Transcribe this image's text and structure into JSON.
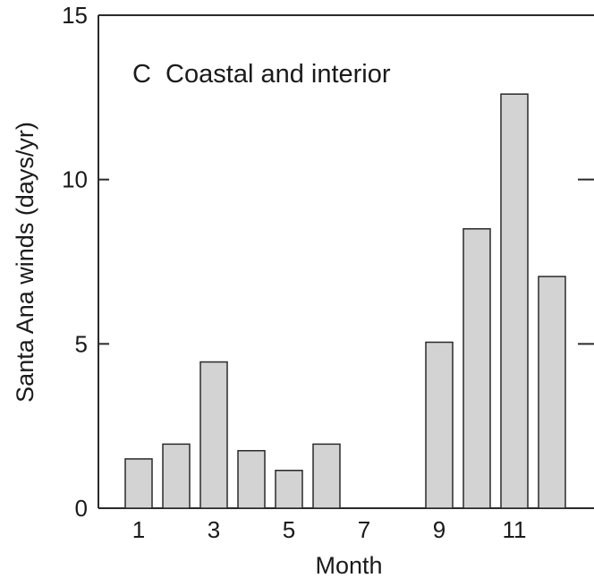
{
  "chart_data": {
    "type": "bar",
    "panel_label": "C  Coastal and interior",
    "xlabel": "Month",
    "ylabel": "Santa Ana winds (days/yr)",
    "categories": [
      1,
      2,
      3,
      4,
      5,
      6,
      7,
      8,
      9,
      10,
      11,
      12
    ],
    "x_tick_labels": [
      "1",
      "3",
      "5",
      "7",
      "9",
      "11"
    ],
    "values": [
      1.5,
      1.95,
      4.45,
      1.75,
      1.15,
      1.95,
      0,
      0,
      5.05,
      8.5,
      12.6,
      7.05
    ],
    "ylim": [
      0,
      15
    ],
    "y_ticks": [
      0,
      5,
      10,
      15
    ],
    "y_tick_labels": [
      "0",
      "5",
      "10",
      "15"
    ],
    "grid": false,
    "legend": "none",
    "colors": {
      "bar_fill": "#d3d3d3",
      "bar_stroke": "#2a2a2a",
      "axis": "#2a2a2a"
    }
  }
}
